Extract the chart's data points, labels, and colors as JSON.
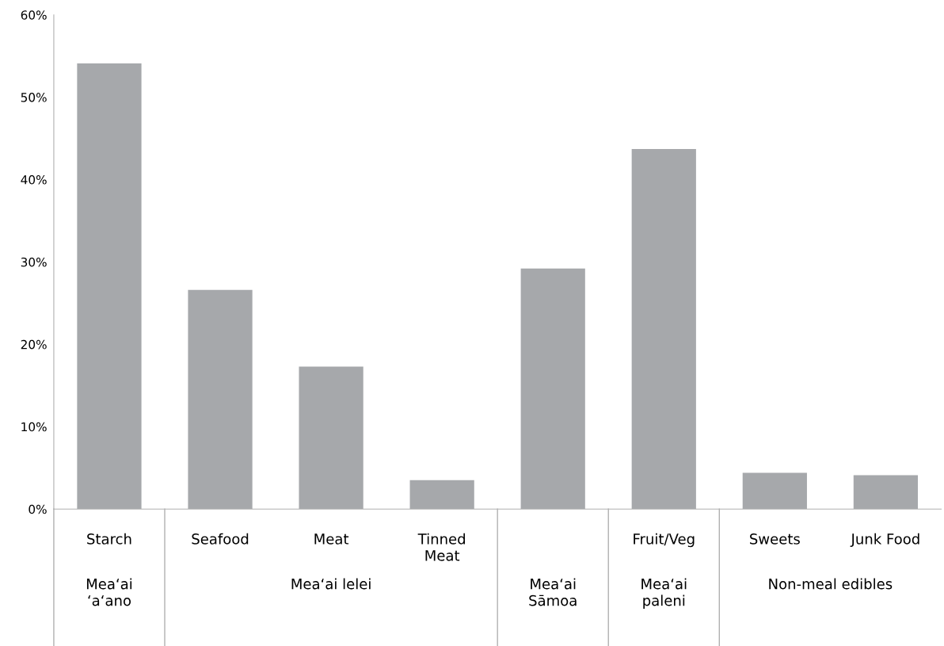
{
  "chart_data": {
    "type": "bar",
    "categories": [
      "Starch",
      "Seafood",
      "Meat",
      "Tinned\nMeat",
      null,
      "Fruit/Veg",
      "Sweets",
      "Junk Food"
    ],
    "values": [
      54.1,
      26.6,
      17.3,
      3.5,
      29.2,
      43.7,
      4.4,
      4.1
    ],
    "color": "#a6a8ab",
    "ylim": [
      0,
      60
    ],
    "yticks": [
      {
        "value": 0,
        "label": "0%"
      },
      {
        "value": 10,
        "label": "10%"
      },
      {
        "value": 20,
        "label": "20%"
      },
      {
        "value": 30,
        "label": "30%"
      },
      {
        "value": 40,
        "label": "40%"
      },
      {
        "value": 50,
        "label": "50%"
      },
      {
        "value": 60,
        "label": "60%"
      }
    ],
    "annotations": [
      "Mea‘ai\n‘a‘ano",
      "Mea‘ai lelei",
      "Mea‘ai\nSāmoa",
      "Mea‘ai\npaleni",
      "Non-meal edibles"
    ],
    "grid": false,
    "legend": false
  }
}
